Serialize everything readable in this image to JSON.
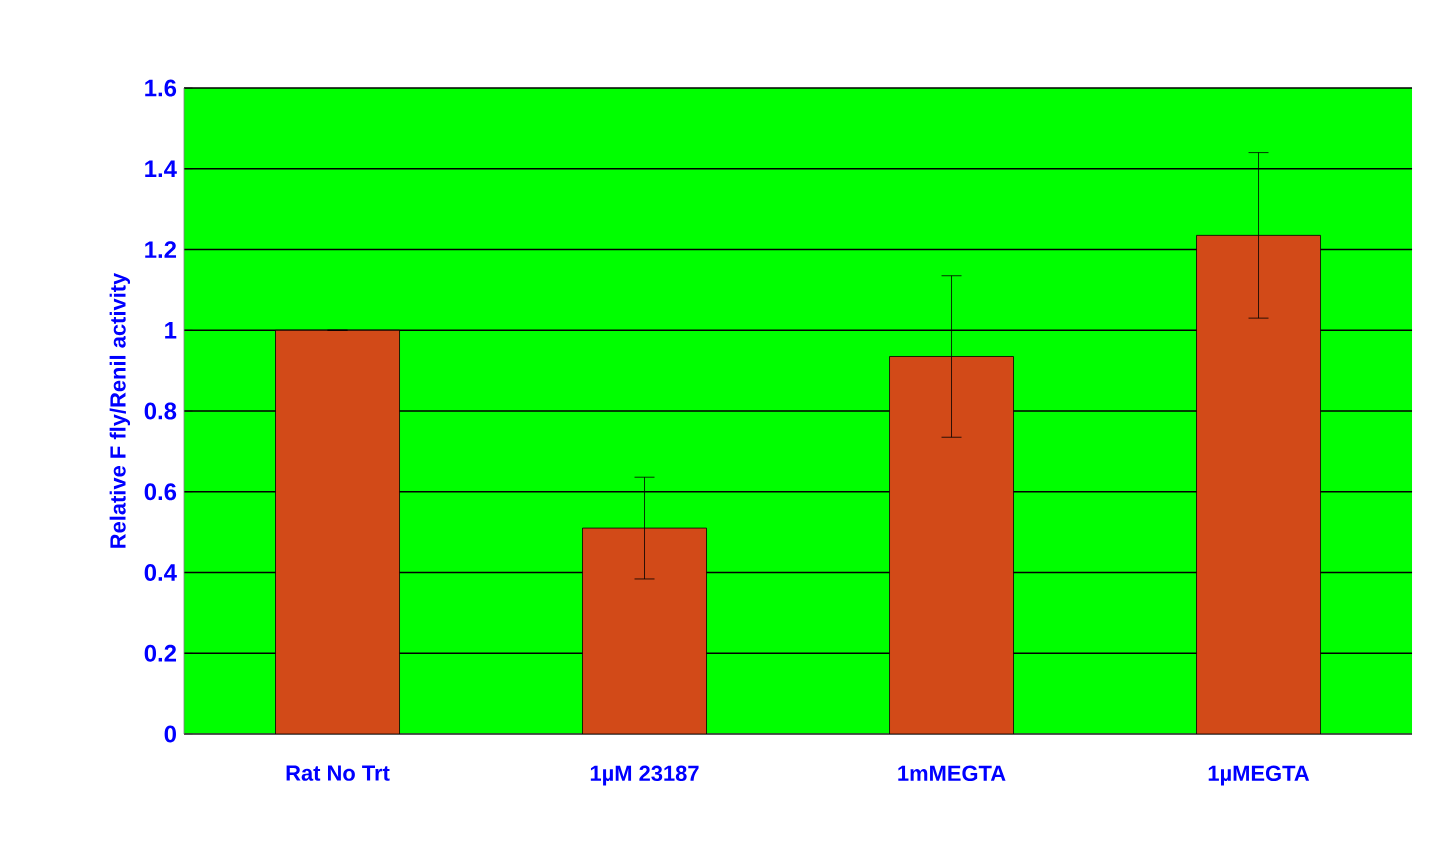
{
  "chart_data": {
    "type": "bar",
    "ylabel": "Relative F fly/Renil activity",
    "categories": [
      "Rat No Trt",
      "1µM 23187",
      "1mMEGTA",
      "1µMEGTA"
    ],
    "values": [
      1.0,
      0.51,
      0.935,
      1.235
    ],
    "errors": [
      0,
      0.126,
      0.2,
      0.205
    ],
    "color": "#d24a18",
    "ylim": [
      0,
      1.6
    ],
    "yticks": [
      0,
      0.2,
      0.4,
      0.6,
      0.8,
      1,
      1.2,
      1.4,
      1.6
    ],
    "grid": "y"
  }
}
